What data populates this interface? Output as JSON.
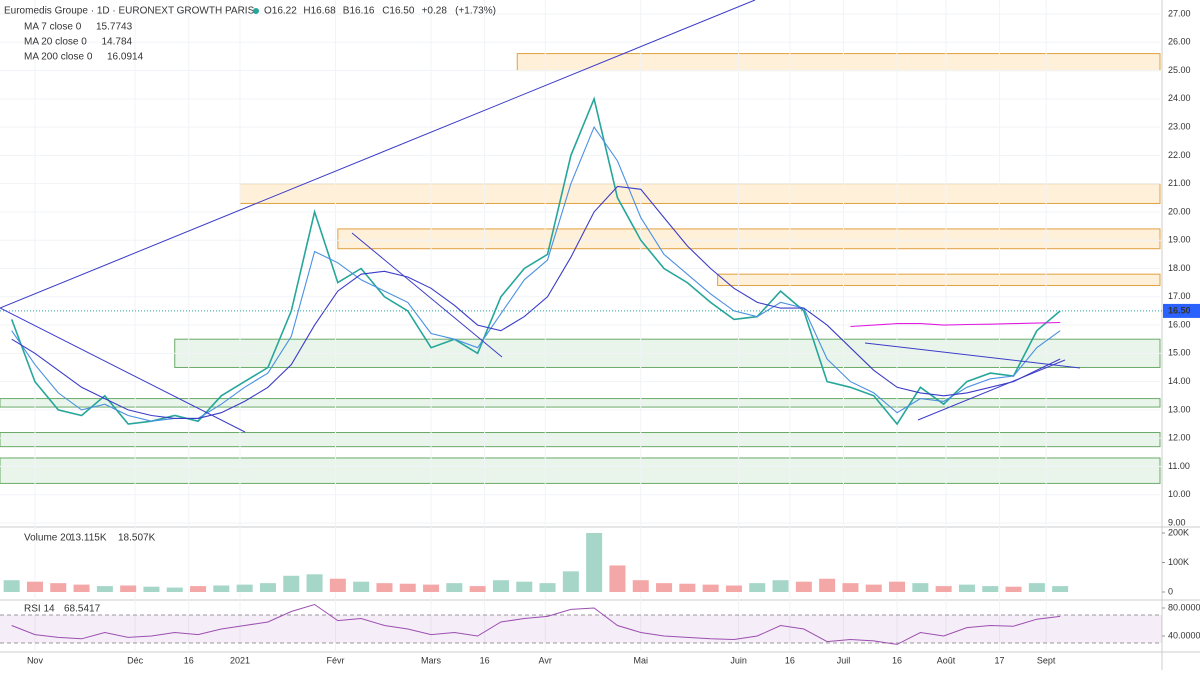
{
  "header": {
    "title": "Euromedis Groupe · 1D · EURONEXT GROWTH PARIS",
    "ohlc": [
      {
        "value": 16.22,
        "label": "O16.22"
      },
      {
        "value": 16.68,
        "label": "H16.68"
      },
      {
        "value": 16.16,
        "label": "B16.16"
      },
      {
        "value": 16.5,
        "label": "C16.50"
      },
      {
        "value": 0.28,
        "label": "+0.28"
      },
      {
        "value": 1.73,
        "label": "(+1.73%)"
      }
    ]
  },
  "chart_data": [
    {
      "type": "line",
      "x": [
        0.5,
        1.5,
        2.5,
        3.5,
        4.5,
        5.5,
        6.5,
        7.5,
        8.5,
        9.5,
        10.5,
        11.5,
        12.5,
        13.5,
        14.5,
        15.5,
        16.5,
        17.5,
        18.5,
        19.5,
        20.5,
        21.5,
        22.5,
        23.5,
        24.5,
        25.5,
        26.5,
        27.5,
        28.5,
        29.5,
        30.5,
        31.5,
        32.5,
        33.5,
        34.5,
        35.5,
        36.5,
        37.5,
        38.5,
        39.5,
        40.5,
        41.5,
        42.5,
        43.5,
        44.5,
        45.5
      ],
      "xlim": [
        0,
        50
      ],
      "xticks": [
        {
          "value": 1.5,
          "label": "Nov"
        },
        {
          "value": 5.8,
          "label": "Déc"
        },
        {
          "value": 8.1,
          "label": "16"
        },
        {
          "value": 10.3,
          "label": "2021"
        },
        {
          "value": 14.4,
          "label": "Févr"
        },
        {
          "value": 18.5,
          "label": "Mars"
        },
        {
          "value": 20.8,
          "label": "16"
        },
        {
          "value": 23.4,
          "label": "Avr"
        },
        {
          "value": 27.5,
          "label": "Mai"
        },
        {
          "value": 31.7,
          "label": "Juin"
        },
        {
          "value": 33.9,
          "label": "16"
        },
        {
          "value": 36.2,
          "label": "Juil"
        },
        {
          "value": 38.5,
          "label": "16"
        },
        {
          "value": 40.6,
          "label": "Août"
        },
        {
          "value": 42.9,
          "label": "17"
        },
        {
          "value": 44.9,
          "label": "Sept"
        }
      ],
      "ylim": [
        9,
        27
      ],
      "yticks": [
        {
          "value": 9,
          "label": "9.00"
        },
        {
          "value": 10,
          "label": "10.00"
        },
        {
          "value": 11,
          "label": "11.00"
        },
        {
          "value": 12,
          "label": "12.00"
        },
        {
          "value": 13,
          "label": "13.00"
        },
        {
          "value": 14,
          "label": "14.00"
        },
        {
          "value": 15,
          "label": "15.00"
        },
        {
          "value": 16,
          "label": "16.00"
        },
        {
          "value": 17,
          "label": "17.00"
        },
        {
          "value": 18,
          "label": "18.00"
        },
        {
          "value": 19,
          "label": "19.00"
        },
        {
          "value": 20,
          "label": "20.00"
        },
        {
          "value": 21,
          "label": "21.00"
        },
        {
          "value": 22,
          "label": "22.00"
        },
        {
          "value": 23,
          "label": "23.00"
        },
        {
          "value": 24,
          "label": "24.00"
        },
        {
          "value": 25,
          "label": "25.00"
        },
        {
          "value": 26,
          "label": "26.00"
        },
        {
          "value": 27,
          "label": "27.00"
        }
      ],
      "grid": true,
      "last_price": {
        "value": 16.5,
        "label": "16.50"
      },
      "series": [
        {
          "color": "#26a69a",
          "values": [
            16.2,
            14.0,
            13.0,
            12.8,
            13.5,
            12.5,
            12.6,
            12.8,
            12.6,
            13.5,
            14.0,
            14.5,
            16.5,
            20.0,
            17.5,
            18.0,
            17.0,
            16.5,
            15.2,
            15.5,
            15.0,
            17.0,
            18.0,
            18.5,
            22.0,
            24.0,
            20.5,
            19.0,
            18.0,
            17.5,
            16.8,
            16.2,
            16.3,
            17.2,
            16.5,
            14.0,
            13.8,
            13.5,
            12.5,
            13.8,
            13.2,
            14.0,
            14.3,
            14.2,
            15.8,
            16.5
          ]
        },
        {
          "name": "MA 7 close 0",
          "color": "#4a90e2",
          "last_value": 15.7743,
          "values": [
            15.8,
            14.6,
            13.6,
            13.0,
            13.2,
            12.8,
            12.6,
            12.7,
            12.7,
            13.2,
            13.8,
            14.3,
            15.6,
            18.6,
            18.2,
            17.6,
            17.2,
            16.8,
            15.7,
            15.5,
            15.2,
            16.4,
            17.6,
            18.3,
            21.0,
            23.0,
            21.8,
            19.8,
            18.5,
            17.8,
            17.1,
            16.5,
            16.3,
            16.8,
            16.6,
            14.8,
            14.0,
            13.6,
            12.9,
            13.4,
            13.3,
            13.8,
            14.1,
            14.2,
            15.2,
            15.8
          ]
        },
        {
          "name": "MA 20 close 0",
          "color": "#3c3cc8",
          "last_value": 14.784,
          "values": [
            15.5,
            15.0,
            14.4,
            13.8,
            13.4,
            13.0,
            12.8,
            12.7,
            12.7,
            12.9,
            13.3,
            13.8,
            14.6,
            16.0,
            17.2,
            17.8,
            17.9,
            17.7,
            17.3,
            16.7,
            16.0,
            15.8,
            16.3,
            17.0,
            18.4,
            20.0,
            20.9,
            20.8,
            19.8,
            18.8,
            18.0,
            17.3,
            16.8,
            16.6,
            16.6,
            16.0,
            15.2,
            14.4,
            13.8,
            13.6,
            13.5,
            13.6,
            13.8,
            14.0,
            14.4,
            14.8
          ]
        },
        {
          "name": "MA 200 close 0",
          "color": "#e01ee0",
          "last_value": 16.0914,
          "values": [
            null,
            null,
            null,
            null,
            null,
            null,
            null,
            null,
            null,
            null,
            null,
            null,
            null,
            null,
            null,
            null,
            null,
            null,
            null,
            null,
            null,
            null,
            null,
            null,
            null,
            null,
            null,
            null,
            null,
            null,
            null,
            null,
            null,
            null,
            null,
            null,
            15.95,
            16.0,
            16.05,
            16.05,
            16.0,
            16.02,
            16.03,
            16.05,
            16.07,
            16.09
          ]
        }
      ],
      "zones": [
        {
          "low": 25.0,
          "high": 25.6,
          "x_start": 22.2,
          "kind": "resistance"
        },
        {
          "low": 20.3,
          "high": 21.0,
          "x_start": 10.3,
          "kind": "resistance"
        },
        {
          "low": 18.7,
          "high": 19.4,
          "x_start": 14.5,
          "kind": "resistance"
        },
        {
          "low": 17.4,
          "high": 17.8,
          "x_start": 30.8,
          "kind": "resistance"
        },
        {
          "low": 14.5,
          "high": 15.5,
          "x_start": 7.5,
          "kind": "support"
        },
        {
          "low": 13.1,
          "high": 13.4,
          "x_start": 0,
          "kind": "support"
        },
        {
          "low": 11.7,
          "high": 12.2,
          "x_start": 0,
          "kind": "support"
        },
        {
          "low": 10.4,
          "high": 11.3,
          "x_start": 0,
          "kind": "support"
        }
      ]
    },
    {
      "type": "bar",
      "title": "Volume 20",
      "legend_values": [
        {
          "value": 13.115,
          "label": "13.115K"
        },
        {
          "value": 18.507,
          "label": "18.507K"
        }
      ],
      "ylim": [
        0,
        200
      ],
      "yticks": [
        0,
        {
          "value": 100,
          "label": "100K"
        },
        {
          "value": 200,
          "label": "200K"
        }
      ],
      "colors": {
        "up": "#a5d6c8",
        "down": "#f4a7a7"
      },
      "values": [
        40,
        35,
        30,
        25,
        20,
        22,
        18,
        15,
        20,
        22,
        25,
        30,
        55,
        60,
        45,
        35,
        30,
        28,
        25,
        30,
        20,
        40,
        35,
        30,
        70,
        200,
        90,
        40,
        30,
        28,
        25,
        22,
        30,
        40,
        35,
        45,
        30,
        25,
        35,
        30,
        20,
        25,
        20,
        18,
        30,
        20
      ]
    },
    {
      "type": "line",
      "title": "RSI 14",
      "legend_values": [
        {
          "value": 68.5417,
          "label": "68.5417"
        }
      ],
      "ylim": [
        20,
        90
      ],
      "yticks": [
        {
          "value": 40,
          "label": "40.0000"
        },
        {
          "value": 80,
          "label": "80.0000"
        }
      ],
      "band": [
        30,
        70
      ],
      "color": "#9c4fb0",
      "values": [
        55,
        42,
        38,
        36,
        45,
        38,
        40,
        45,
        42,
        50,
        55,
        60,
        75,
        85,
        62,
        65,
        55,
        50,
        42,
        45,
        40,
        60,
        65,
        68,
        78,
        80,
        55,
        45,
        40,
        38,
        36,
        35,
        40,
        55,
        50,
        32,
        35,
        33,
        28,
        45,
        40,
        52,
        55,
        54,
        64,
        68
      ]
    }
  ]
}
